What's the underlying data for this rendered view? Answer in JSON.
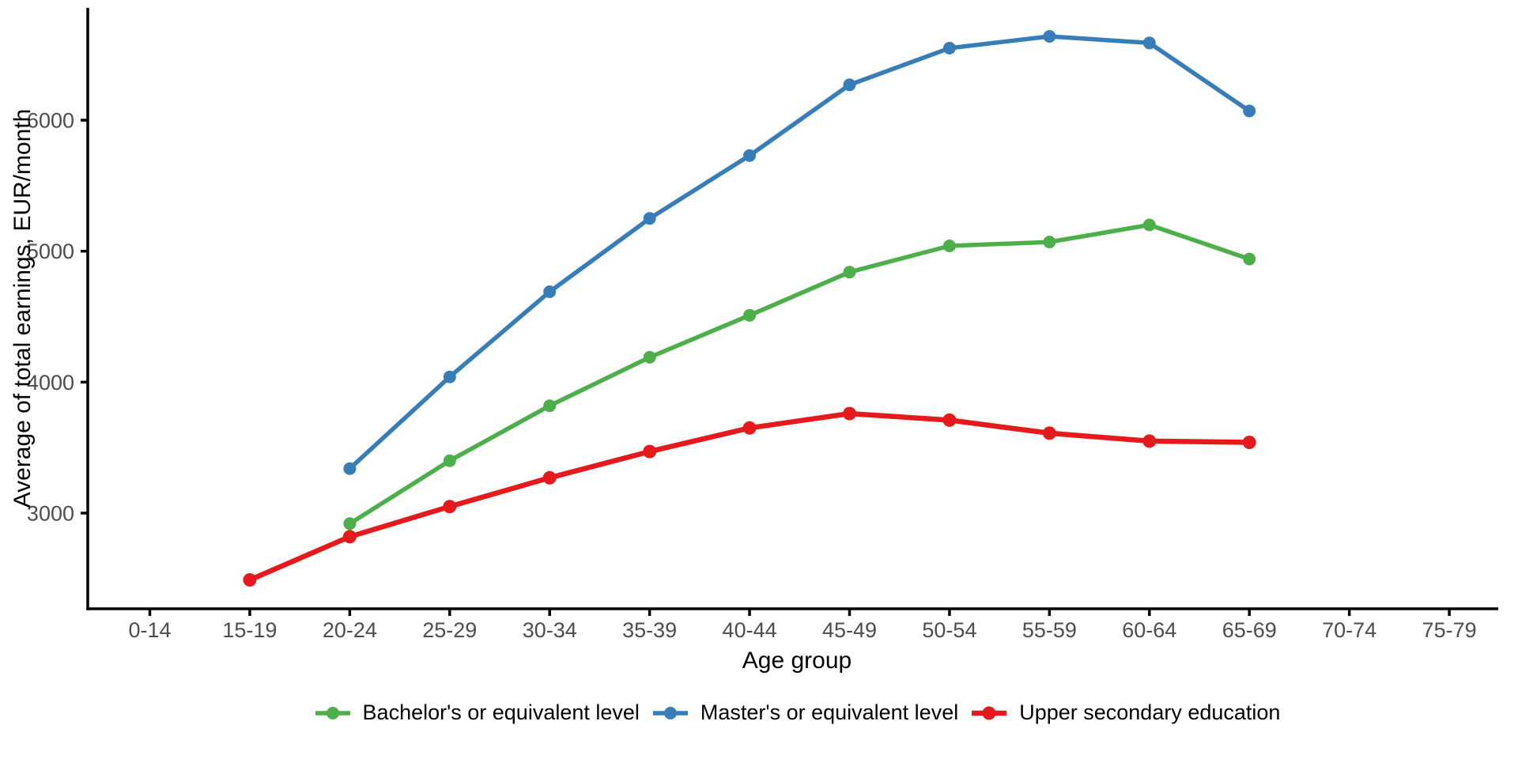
{
  "chart_data": {
    "type": "line",
    "title": "",
    "xlabel": "Age group",
    "ylabel": "Average of total earnings, EUR/month",
    "categories": [
      "0-14",
      "15-19",
      "20-24",
      "25-29",
      "30-34",
      "35-39",
      "40-44",
      "45-49",
      "50-54",
      "55-59",
      "60-64",
      "65-69",
      "70-74",
      "75-79"
    ],
    "y_ticks": [
      3000,
      4000,
      5000,
      6000
    ],
    "ylim": [
      2270,
      6860
    ],
    "grid": false,
    "legend_position": "bottom",
    "marker": "circle",
    "series": [
      {
        "name": "Bachelor's or equivalent level",
        "color": "#4DAF4A",
        "values": [
          null,
          null,
          2920,
          3400,
          3820,
          4190,
          4510,
          4840,
          5040,
          5070,
          5200,
          4940,
          null,
          null
        ]
      },
      {
        "name": "Master's or equivalent level",
        "color": "#377EB8",
        "values": [
          null,
          null,
          3340,
          4040,
          4690,
          5250,
          5730,
          6270,
          6550,
          6640,
          6590,
          6070,
          null,
          null
        ]
      },
      {
        "name": "Upper secondary education",
        "color": "#E41A1C",
        "values": [
          null,
          2490,
          2820,
          3050,
          3270,
          3470,
          3650,
          3760,
          3710,
          3610,
          3550,
          3540,
          null,
          null
        ]
      }
    ]
  }
}
